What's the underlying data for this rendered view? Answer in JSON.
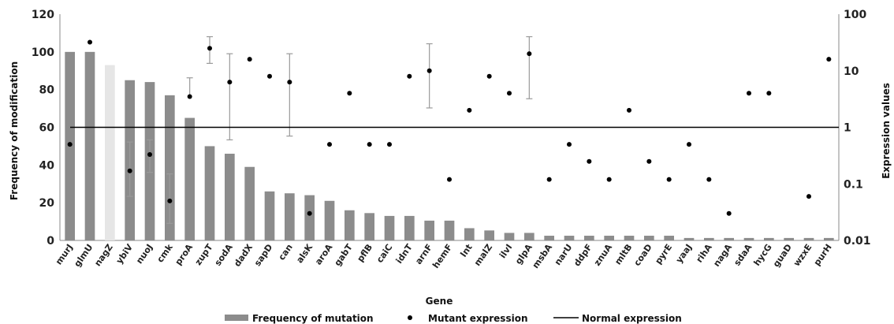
{
  "chart_data": {
    "type": "bar",
    "xlabel": "Gene",
    "ylabel": "Frequency of modification",
    "y2label": "Expression values",
    "ylim": [
      0,
      120
    ],
    "yticks": [
      0,
      20,
      40,
      60,
      80,
      100,
      120
    ],
    "y2lim": [
      0.01,
      100
    ],
    "y2scale": "log",
    "y2ticks": [
      "0.01",
      "0.1",
      "1",
      "10",
      "100"
    ],
    "normal_expression": 1,
    "categories": [
      "murJ",
      "glmU",
      "nagZ",
      "ybiV",
      "nuoJ",
      "cmk",
      "proA",
      "zupT",
      "sodA",
      "dadX",
      "sapD",
      "can",
      "alsK",
      "aroA",
      "gabT",
      "pflB",
      "caiC",
      "idnT",
      "arnF",
      "hemF",
      "lnt",
      "malZ",
      "ilvI",
      "glpA",
      "msbA",
      "narU",
      "ddpF",
      "znuA",
      "mltB",
      "coaD",
      "pyrE",
      "yaaJ",
      "rihA",
      "nagA",
      "sdaA",
      "hycG",
      "guaD",
      "wzxE",
      "purH"
    ],
    "series": [
      {
        "name": "Frequency of mutation",
        "axis": "left",
        "values": [
          100,
          100,
          93,
          85,
          84,
          77,
          65,
          50,
          46,
          39,
          26,
          25,
          24,
          21,
          16,
          14.5,
          13,
          13,
          10.5,
          10.5,
          6.5,
          5.3,
          4,
          4,
          2.5,
          2.5,
          2.5,
          2.5,
          2.5,
          2.5,
          2.5,
          1.3,
          1.3,
          1.3,
          1.3,
          1.3,
          1.3,
          1.3,
          1.3
        ]
      },
      {
        "name": "Mutant expression",
        "axis": "right",
        "values": [
          0.5,
          32,
          null,
          0.17,
          0.33,
          0.05,
          3.5,
          25,
          6.3,
          16,
          8,
          6.3,
          0.03,
          0.5,
          4,
          0.5,
          0.5,
          8,
          10,
          0.12,
          2,
          8,
          4,
          20,
          0.12,
          0.5,
          0.25,
          0.12,
          2,
          0.25,
          0.12,
          0.5,
          0.12,
          0.03,
          4,
          4,
          null,
          0.06,
          16
        ],
        "error_low": [
          null,
          null,
          null,
          0.06,
          0.16,
          0.02,
          null,
          13.5,
          0.6,
          null,
          null,
          0.7,
          null,
          null,
          null,
          null,
          null,
          null,
          2.2,
          null,
          null,
          null,
          null,
          3.2,
          null,
          null,
          null,
          null,
          null,
          null,
          null,
          null,
          null,
          null,
          null,
          null,
          null,
          null,
          null
        ],
        "error_high": [
          null,
          null,
          null,
          0.55,
          0.6,
          0.15,
          7.5,
          40,
          20,
          null,
          null,
          20,
          null,
          null,
          null,
          null,
          null,
          null,
          30,
          null,
          null,
          null,
          null,
          40,
          null,
          null,
          null,
          null,
          null,
          null,
          null,
          null,
          null,
          null,
          null,
          null,
          null,
          null,
          null
        ]
      },
      {
        "name": "Normal expression",
        "axis": "right",
        "value": 1
      }
    ],
    "highlight_bar": "nagZ",
    "colors": {
      "bar": "#8c8c8c",
      "highlight": "#e6e6e6",
      "point": "#000000",
      "errorbar": "#9a9a9a",
      "line": "#000000"
    },
    "legend_position": "bottom"
  }
}
